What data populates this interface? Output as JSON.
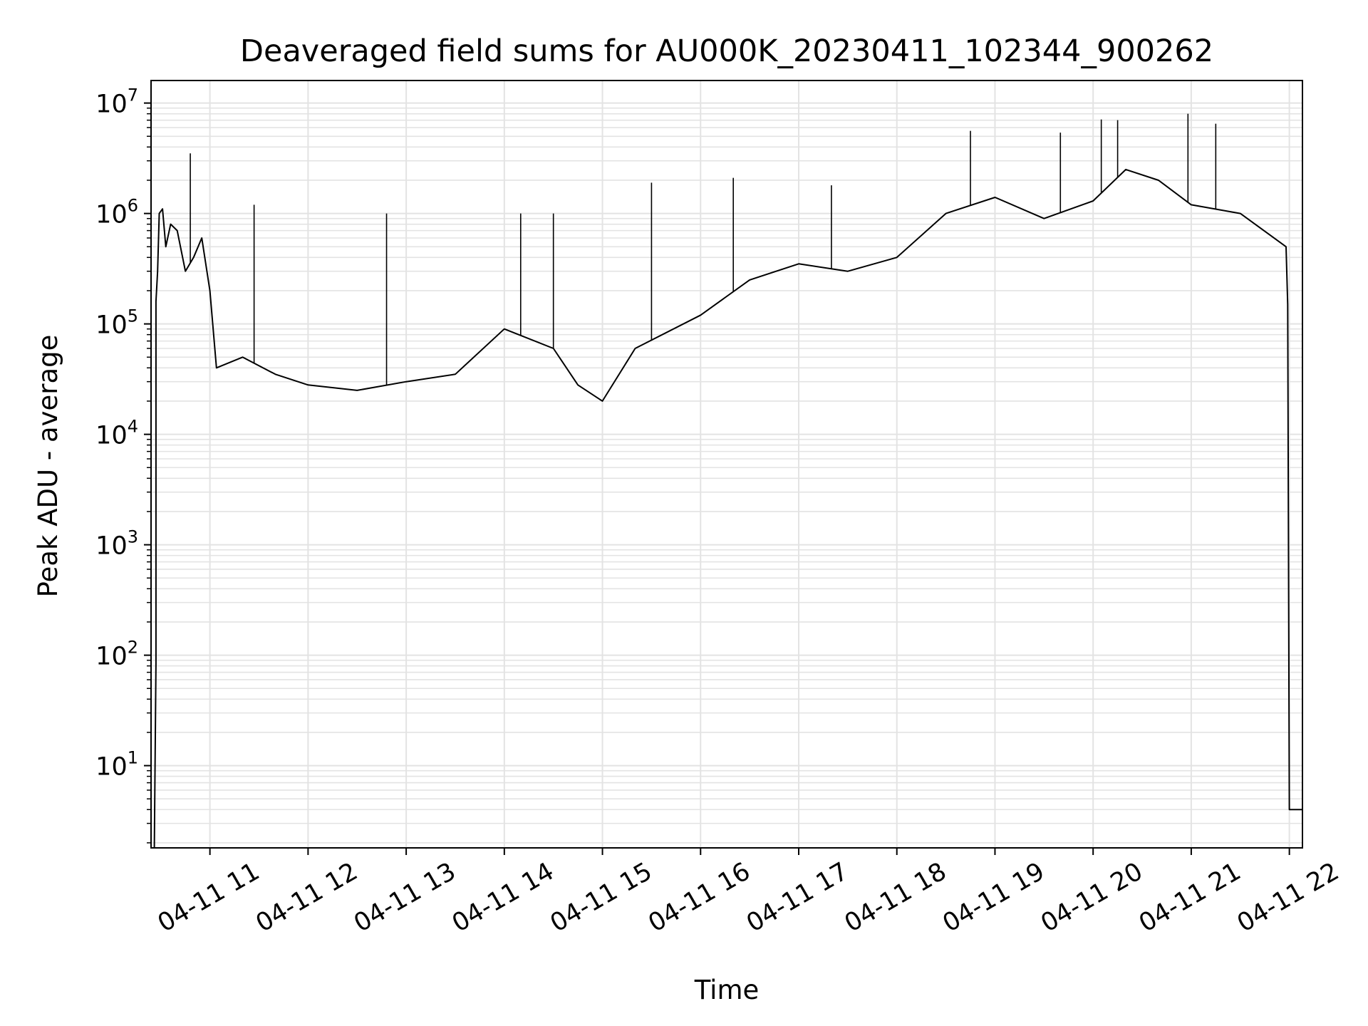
{
  "chart_data": {
    "type": "line",
    "title": "Deaveraged field sums for AU000K_20230411_102344_900262",
    "xlabel": "Time",
    "ylabel": "Peak ADU - average",
    "yscale": "log",
    "ylim": [
      1.8,
      16000000
    ],
    "xlim": [
      "2023-04-11 10:24",
      "2023-04-11 22:08"
    ],
    "grid": true,
    "grid_minor": true,
    "line_color": "#000000",
    "x_tick_labels": [
      "04-11 11",
      "04-11 12",
      "04-11 13",
      "04-11 14",
      "04-11 15",
      "04-11 16",
      "04-11 17",
      "04-11 18",
      "04-11 19",
      "04-11 20",
      "04-11 21",
      "04-11 22"
    ],
    "y_ticks": [
      {
        "base": "10",
        "exp": "1",
        "value": 10
      },
      {
        "base": "10",
        "exp": "2",
        "value": 100
      },
      {
        "base": "10",
        "exp": "3",
        "value": 1000
      },
      {
        "base": "10",
        "exp": "4",
        "value": 10000
      },
      {
        "base": "10",
        "exp": "5",
        "value": 100000
      },
      {
        "base": "10",
        "exp": "6",
        "value": 1000000
      },
      {
        "base": "10",
        "exp": "7",
        "value": 10000000
      }
    ],
    "series": [
      {
        "x": [
          "2023-04-11 10:26",
          "2023-04-11 10:27",
          "2023-04-11 10:27",
          "2023-04-11 10:28",
          "2023-04-11 10:29",
          "2023-04-11 10:31",
          "2023-04-11 10:33",
          "2023-04-11 10:36",
          "2023-04-11 10:40",
          "2023-04-11 10:45",
          "2023-04-11 10:50",
          "2023-04-11 10:55",
          "2023-04-11 11:00",
          "2023-04-11 11:04",
          "2023-04-11 11:20",
          "2023-04-11 11:40",
          "2023-04-11 12:00",
          "2023-04-11 12:30",
          "2023-04-11 13:00",
          "2023-04-11 13:30",
          "2023-04-11 14:00",
          "2023-04-11 14:30",
          "2023-04-11 14:45",
          "2023-04-11 15:00",
          "2023-04-11 15:20",
          "2023-04-11 16:00",
          "2023-04-11 16:30",
          "2023-04-11 17:00",
          "2023-04-11 17:30",
          "2023-04-11 18:00",
          "2023-04-11 18:30",
          "2023-04-11 19:00",
          "2023-04-11 19:30",
          "2023-04-11 20:00",
          "2023-04-11 20:20",
          "2023-04-11 20:40",
          "2023-04-11 21:00",
          "2023-04-11 21:30",
          "2023-04-11 21:58",
          "2023-04-11 21:59",
          "2023-04-11 22:00",
          "2023-04-11 22:08"
        ],
        "y": [
          1.8,
          85,
          160000,
          300000,
          1000000,
          1100000,
          500000,
          800000,
          700000,
          300000,
          400000,
          600000,
          200000,
          40000,
          50000,
          35000,
          28000,
          25000,
          30000,
          35000,
          90000,
          60000,
          28000,
          20000,
          60000,
          120000,
          250000,
          350000,
          300000,
          400000,
          1000000,
          1400000,
          900000,
          1300000,
          2500000,
          2000000,
          1200000,
          1000000,
          500000,
          150000,
          4,
          4
        ]
      }
    ],
    "spikes": {
      "x": [
        "2023-04-11 10:48",
        "2023-04-11 11:27",
        "2023-04-11 12:48",
        "2023-04-11 14:10",
        "2023-04-11 14:30",
        "2023-04-11 15:30",
        "2023-04-11 16:20",
        "2023-04-11 17:20",
        "2023-04-11 18:45",
        "2023-04-11 19:40",
        "2023-04-11 20:05",
        "2023-04-11 20:15",
        "2023-04-11 20:58",
        "2023-04-11 21:15"
      ],
      "y": [
        3500000,
        1200000,
        1000000,
        1000000,
        1000000,
        1900000,
        2100000,
        1800000,
        5600000,
        5400000,
        7100000,
        7000000,
        8000000,
        6500000
      ]
    }
  }
}
